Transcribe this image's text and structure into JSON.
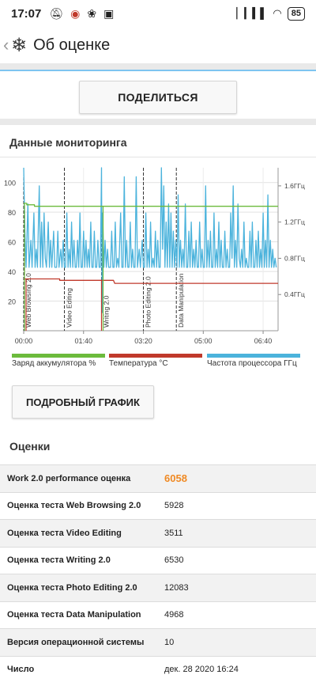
{
  "status": {
    "time": "17:07",
    "battery": "85"
  },
  "app_bar": {
    "title": "Об оценке"
  },
  "share_label": "ПОДЕЛИТЬСЯ",
  "monitor_title": "Данные мониторинга",
  "chart_data": {
    "type": "line",
    "left_axis": {
      "ticks": [
        20,
        40,
        60,
        80,
        100
      ],
      "ylim": [
        0,
        110
      ]
    },
    "right_axis": {
      "ticks": [
        "0.4ГГц",
        "0.8ГГц",
        "1.2ГГц",
        "1.6ГГц"
      ],
      "values": [
        0.4,
        0.8,
        1.2,
        1.6
      ],
      "ylim": [
        0,
        1.8
      ]
    },
    "x_axis": {
      "ticks": [
        "00:00",
        "01:40",
        "03:20",
        "05:00",
        "06:40"
      ],
      "values": [
        0,
        100,
        200,
        300,
        400
      ],
      "xlim": [
        0,
        425
      ]
    },
    "phases": [
      {
        "label": "Web Browsing 2.0",
        "x": 0
      },
      {
        "label": "Video Editing",
        "x": 68
      },
      {
        "label": "Writing 2.0",
        "x": 130
      },
      {
        "label": "Photo Editing 2.0",
        "x": 200
      },
      {
        "label": "Data Manipulation",
        "x": 255
      }
    ],
    "battery": {
      "name": "Заряд аккумулятора %",
      "color": "#6cbb3c",
      "points": [
        [
          0,
          86
        ],
        [
          5,
          86
        ],
        [
          5,
          85
        ],
        [
          18,
          85
        ],
        [
          18,
          84
        ],
        [
          425,
          84
        ]
      ]
    },
    "temperature": {
      "name": "Температура °C",
      "color": "#c0392b",
      "points": [
        [
          0,
          35
        ],
        [
          60,
          35
        ],
        [
          60,
          34
        ],
        [
          150,
          34
        ],
        [
          152,
          32
        ],
        [
          425,
          32
        ]
      ]
    },
    "frequency": {
      "name": "Частота процессора ГГц",
      "color": "#4bb3dc",
      "points": [
        [
          0,
          1.8
        ],
        [
          2,
          1.1
        ],
        [
          4,
          0.7
        ],
        [
          7,
          1.4
        ],
        [
          9,
          0.7
        ],
        [
          12,
          1.0
        ],
        [
          14,
          0.7
        ],
        [
          17,
          1.3
        ],
        [
          19,
          0.7
        ],
        [
          21,
          0.9
        ],
        [
          23,
          0.7
        ],
        [
          26,
          1.6
        ],
        [
          28,
          0.7
        ],
        [
          30,
          1.2
        ],
        [
          32,
          0.7
        ],
        [
          34,
          1.3
        ],
        [
          36,
          0.8
        ],
        [
          38,
          0.7
        ],
        [
          41,
          1.2
        ],
        [
          43,
          0.7
        ],
        [
          45,
          1.0
        ],
        [
          47,
          0.7
        ],
        [
          50,
          1.1
        ],
        [
          52,
          0.7
        ],
        [
          55,
          0.7
        ],
        [
          57,
          1.1
        ],
        [
          59,
          0.7
        ],
        [
          62,
          0.9
        ],
        [
          64,
          0.7
        ],
        [
          66,
          1.0
        ],
        [
          68,
          0.7
        ],
        [
          70,
          0.7
        ],
        [
          72,
          1.3
        ],
        [
          74,
          0.7
        ],
        [
          76,
          0.9
        ],
        [
          78,
          0.7
        ],
        [
          80,
          1.2
        ],
        [
          82,
          0.7
        ],
        [
          84,
          1.0
        ],
        [
          86,
          0.7
        ],
        [
          88,
          0.7
        ],
        [
          90,
          1.0
        ],
        [
          92,
          0.7
        ],
        [
          94,
          1.3
        ],
        [
          96,
          0.7
        ],
        [
          98,
          0.7
        ],
        [
          100,
          1.1
        ],
        [
          102,
          0.7
        ],
        [
          104,
          1.0
        ],
        [
          106,
          0.7
        ],
        [
          108,
          0.9
        ],
        [
          110,
          0.7
        ],
        [
          112,
          1.2
        ],
        [
          114,
          0.7
        ],
        [
          116,
          0.7
        ],
        [
          118,
          1.1
        ],
        [
          120,
          0.7
        ],
        [
          122,
          0.7
        ],
        [
          124,
          1.0
        ],
        [
          126,
          0.7
        ],
        [
          128,
          0.7
        ],
        [
          130,
          1.8
        ],
        [
          131,
          0.2
        ],
        [
          132,
          1.3
        ],
        [
          134,
          0.7
        ],
        [
          136,
          1.0
        ],
        [
          138,
          0.7
        ],
        [
          140,
          0.9
        ],
        [
          142,
          0.7
        ],
        [
          145,
          0.7
        ],
        [
          147,
          1.1
        ],
        [
          149,
          0.7
        ],
        [
          151,
          0.7
        ],
        [
          153,
          1.2
        ],
        [
          155,
          0.7
        ],
        [
          157,
          0.8
        ],
        [
          159,
          0.7
        ],
        [
          162,
          1.3
        ],
        [
          164,
          0.7
        ],
        [
          166,
          0.7
        ],
        [
          168,
          1.7
        ],
        [
          170,
          0.7
        ],
        [
          172,
          1.0
        ],
        [
          174,
          0.7
        ],
        [
          176,
          0.7
        ],
        [
          178,
          1.2
        ],
        [
          180,
          0.7
        ],
        [
          182,
          0.9
        ],
        [
          184,
          0.7
        ],
        [
          186,
          0.7
        ],
        [
          188,
          1.7
        ],
        [
          190,
          0.7
        ],
        [
          193,
          0.9
        ],
        [
          195,
          0.7
        ],
        [
          198,
          1.0
        ],
        [
          200,
          0.7
        ],
        [
          202,
          0.7
        ],
        [
          204,
          1.3
        ],
        [
          206,
          0.7
        ],
        [
          208,
          0.9
        ],
        [
          210,
          0.7
        ],
        [
          212,
          1.2
        ],
        [
          214,
          0.7
        ],
        [
          216,
          0.8
        ],
        [
          218,
          0.7
        ],
        [
          220,
          1.1
        ],
        [
          222,
          0.7
        ],
        [
          224,
          1.0
        ],
        [
          226,
          0.7
        ],
        [
          228,
          0.7
        ],
        [
          230,
          1.8
        ],
        [
          232,
          0.9
        ],
        [
          234,
          1.6
        ],
        [
          236,
          0.7
        ],
        [
          238,
          1.2
        ],
        [
          240,
          0.7
        ],
        [
          242,
          1.4
        ],
        [
          244,
          0.7
        ],
        [
          246,
          1.3
        ],
        [
          248,
          0.7
        ],
        [
          250,
          1.1
        ],
        [
          252,
          0.7
        ],
        [
          254,
          1.0
        ],
        [
          256,
          0.7
        ],
        [
          258,
          1.5
        ],
        [
          260,
          0.7
        ],
        [
          262,
          1.0
        ],
        [
          264,
          0.7
        ],
        [
          266,
          0.9
        ],
        [
          268,
          0.7
        ],
        [
          270,
          1.4
        ],
        [
          272,
          0.7
        ],
        [
          274,
          0.7
        ],
        [
          276,
          1.1
        ],
        [
          278,
          0.7
        ],
        [
          280,
          1.2
        ],
        [
          282,
          0.7
        ],
        [
          284,
          0.9
        ],
        [
          286,
          0.7
        ],
        [
          288,
          1.0
        ],
        [
          290,
          0.7
        ],
        [
          292,
          0.7
        ],
        [
          294,
          1.2
        ],
        [
          296,
          0.7
        ],
        [
          298,
          0.9
        ],
        [
          300,
          0.7
        ],
        [
          302,
          0.7
        ],
        [
          304,
          1.6
        ],
        [
          306,
          0.7
        ],
        [
          308,
          1.0
        ],
        [
          310,
          0.7
        ],
        [
          312,
          1.1
        ],
        [
          314,
          0.7
        ],
        [
          316,
          0.7
        ],
        [
          318,
          1.3
        ],
        [
          320,
          0.7
        ],
        [
          322,
          0.9
        ],
        [
          324,
          0.7
        ],
        [
          326,
          1.2
        ],
        [
          328,
          0.7
        ],
        [
          330,
          1.0
        ],
        [
          332,
          0.7
        ],
        [
          334,
          0.7
        ],
        [
          336,
          1.1
        ],
        [
          338,
          0.7
        ],
        [
          340,
          0.9
        ],
        [
          342,
          0.7
        ],
        [
          344,
          0.7
        ],
        [
          346,
          1.3
        ],
        [
          348,
          0.8
        ],
        [
          350,
          1.6
        ],
        [
          352,
          0.7
        ],
        [
          354,
          1.0
        ],
        [
          356,
          0.7
        ],
        [
          358,
          1.4
        ],
        [
          360,
          0.8
        ],
        [
          362,
          0.7
        ],
        [
          364,
          0.9
        ],
        [
          366,
          0.7
        ],
        [
          368,
          1.2
        ],
        [
          370,
          0.7
        ],
        [
          372,
          0.8
        ],
        [
          374,
          0.7
        ],
        [
          376,
          0.7
        ],
        [
          378,
          1.1
        ],
        [
          380,
          0.7
        ],
        [
          382,
          1.2
        ],
        [
          384,
          0.7
        ],
        [
          386,
          0.7
        ],
        [
          388,
          1.0
        ],
        [
          390,
          0.7
        ],
        [
          392,
          1.1
        ],
        [
          394,
          0.7
        ],
        [
          396,
          0.9
        ],
        [
          398,
          0.7
        ],
        [
          400,
          1.3
        ],
        [
          402,
          0.7
        ],
        [
          404,
          1.0
        ],
        [
          406,
          0.7
        ],
        [
          408,
          1.5
        ],
        [
          410,
          0.7
        ],
        [
          412,
          1.0
        ],
        [
          414,
          0.7
        ],
        [
          416,
          0.9
        ],
        [
          418,
          0.7
        ],
        [
          420,
          0.8
        ],
        [
          422,
          0.7
        ]
      ]
    }
  },
  "legend": {
    "battery": "Заряд аккумулятора %",
    "temperature": "Температура °C",
    "frequency": "Частота процессора ГГц"
  },
  "detail_label": "ПОДРОБНЫЙ ГРАФИК",
  "scores_title": "Оценки",
  "scores": [
    {
      "label": "Work 2.0 performance оценка",
      "value": "6058",
      "highlight": true
    },
    {
      "label": "Оценка теста Web Browsing 2.0",
      "value": "5928"
    },
    {
      "label": "Оценка теста Video Editing",
      "value": "3511"
    },
    {
      "label": "Оценка теста Writing 2.0",
      "value": "6530"
    },
    {
      "label": "Оценка теста Photo Editing 2.0",
      "value": "12083"
    },
    {
      "label": "Оценка теста Data Manipulation",
      "value": "4968"
    },
    {
      "label": "Версия операционной системы",
      "value": "10"
    },
    {
      "label": "Число",
      "value": "дек. 28 2020 16:24"
    }
  ],
  "colors": {
    "accent": "#f08a24",
    "battery": "#6cbb3c",
    "temperature": "#c0392b",
    "frequency": "#4bb3dc"
  }
}
